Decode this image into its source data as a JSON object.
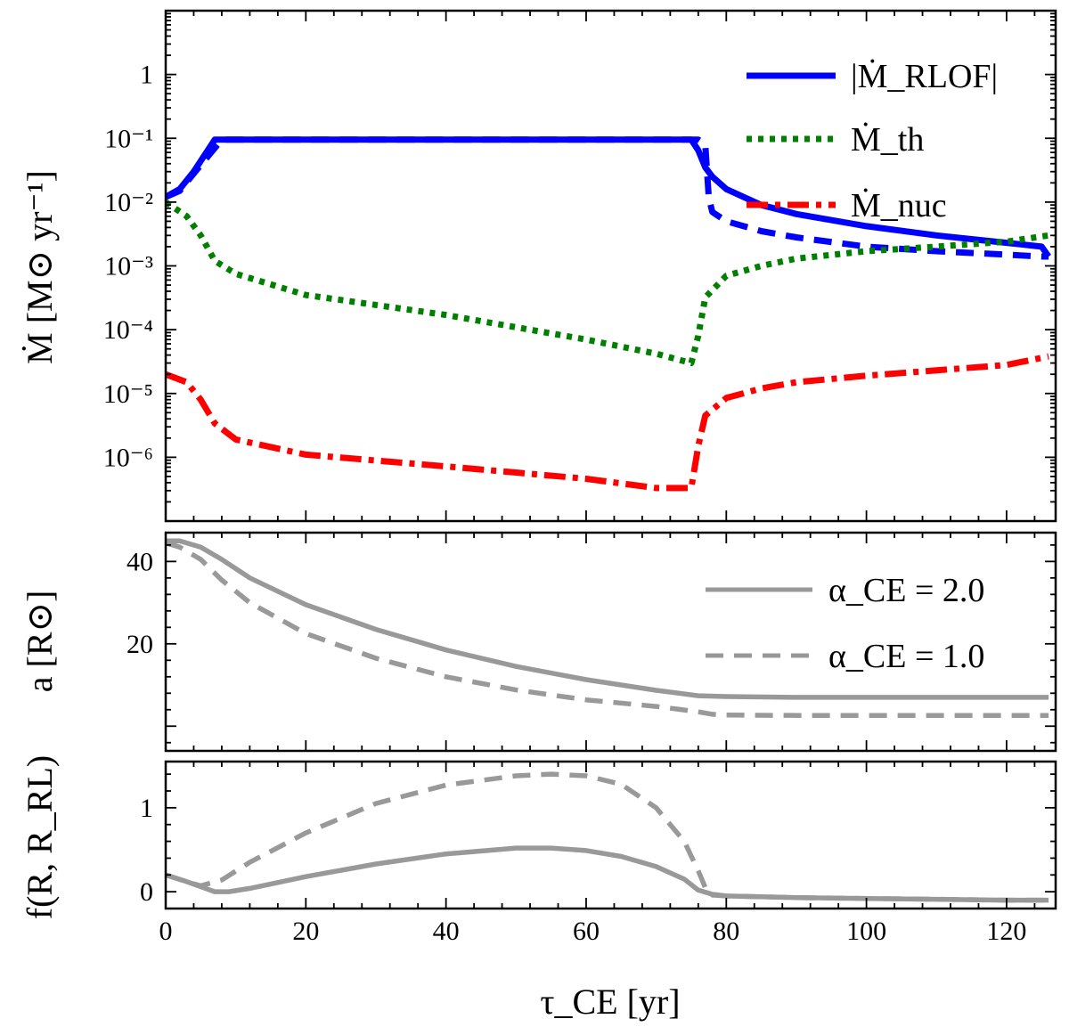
{
  "chart_data": [
    {
      "type": "line",
      "xlim": [
        0,
        127
      ],
      "ylim": [
        1e-07,
        10
      ],
      "yscale": "log",
      "xlabel": "τ_CE [yr]",
      "ylabel": "Ṁ [M⊙ yr⁻¹]",
      "ytick_labels": [
        "10⁻⁶",
        "10⁻⁵",
        "10⁻⁴",
        "10⁻³",
        "10⁻²",
        "10⁻¹",
        "1"
      ],
      "ytick_values": [
        1e-06,
        1e-05,
        0.0001,
        0.001,
        0.01,
        0.1,
        1
      ],
      "legend": [
        "|Ṁ_RLOF|",
        "Ṁ_th",
        "Ṁ_nuc"
      ],
      "legend_position": "top-right",
      "series": [
        {
          "name": "|Ṁ_RLOF|",
          "color": "#0000ff",
          "style": "solid",
          "x": [
            0,
            2,
            4,
            7,
            10,
            20,
            40,
            60,
            75,
            76,
            77,
            78,
            80,
            85,
            90,
            100,
            110,
            120,
            125,
            126
          ],
          "y": [
            0.012,
            0.016,
            0.03,
            0.095,
            0.095,
            0.095,
            0.095,
            0.095,
            0.095,
            0.065,
            0.035,
            0.025,
            0.016,
            0.009,
            0.0065,
            0.0042,
            0.003,
            0.0023,
            0.002,
            0.0014
          ]
        },
        {
          "name": "|Ṁ_RLOF| (α_CE=1.0)",
          "color": "#0000ff",
          "style": "dashed",
          "x": [
            0,
            2,
            4,
            8,
            10,
            20,
            40,
            60,
            76,
            77,
            77.5,
            78,
            80,
            85,
            90,
            100,
            110,
            120,
            125,
            126
          ],
          "y": [
            0.012,
            0.015,
            0.028,
            0.095,
            0.095,
            0.095,
            0.095,
            0.095,
            0.095,
            0.08,
            0.012,
            0.007,
            0.005,
            0.0035,
            0.0028,
            0.002,
            0.0017,
            0.0015,
            0.0014,
            0.0014
          ]
        },
        {
          "name": "Ṁ_th",
          "color": "#008000",
          "style": "dotted",
          "x": [
            0,
            3,
            5,
            7,
            10,
            20,
            40,
            60,
            70,
            75,
            76,
            77,
            80,
            85,
            90,
            100,
            110,
            120,
            126
          ],
          "y": [
            0.01,
            0.006,
            0.003,
            0.0012,
            0.00075,
            0.00035,
            0.00017,
            7e-05,
            4.2e-05,
            3e-05,
            8e-05,
            0.00032,
            0.0007,
            0.001,
            0.0013,
            0.0017,
            0.002,
            0.0024,
            0.003
          ]
        },
        {
          "name": "Ṁ_nuc",
          "color": "#ff0000",
          "style": "dashdot",
          "x": [
            0,
            3,
            5,
            7,
            10,
            20,
            40,
            60,
            70,
            75,
            76,
            77,
            80,
            85,
            90,
            100,
            110,
            120,
            126
          ],
          "y": [
            2e-05,
            1.5e-05,
            8e-06,
            3.4e-06,
            1.9e-06,
            1.1e-06,
            7.2e-07,
            4.6e-07,
            3.3e-07,
            3.3e-07,
            1.5e-06,
            4.5e-06,
            8.5e-06,
            1.2e-05,
            1.5e-05,
            1.9e-05,
            2.3e-05,
            2.8e-05,
            3.8e-05
          ]
        }
      ]
    },
    {
      "type": "line",
      "xlim": [
        0,
        127
      ],
      "ylim": [
        -6,
        47
      ],
      "ylabel": "a [R⊙]",
      "ytick_labels": [
        "20",
        "40"
      ],
      "ytick_values": [
        20,
        40
      ],
      "legend": [
        "α_CE = 2.0",
        "α_CE = 1.0"
      ],
      "legend_position": "top-right",
      "series": [
        {
          "name": "α_CE = 2.0",
          "color": "#999999",
          "style": "solid",
          "x": [
            0,
            2,
            5,
            8,
            12,
            20,
            30,
            40,
            50,
            60,
            70,
            76,
            80,
            90,
            100,
            110,
            120,
            126
          ],
          "y": [
            45,
            45,
            43.5,
            40.5,
            36,
            29.5,
            23.5,
            18.5,
            14.5,
            11.3,
            8.7,
            7.4,
            7.2,
            7.0,
            7.0,
            7.0,
            7.0,
            7.0
          ]
        },
        {
          "name": "α_CE = 1.0",
          "color": "#999999",
          "style": "dashed",
          "x": [
            0,
            2,
            5,
            8,
            12,
            20,
            30,
            40,
            50,
            60,
            70,
            76,
            78,
            80,
            90,
            100,
            110,
            120,
            126
          ],
          "y": [
            44.5,
            43.5,
            40.5,
            35.5,
            30,
            22.5,
            16.5,
            12,
            8.8,
            6.4,
            4.8,
            3.5,
            2.9,
            2.7,
            2.6,
            2.6,
            2.6,
            2.6,
            2.6
          ]
        }
      ]
    },
    {
      "type": "line",
      "xlim": [
        0,
        127
      ],
      "ylim": [
        -0.2,
        1.55
      ],
      "xlabel": "τ_CE [yr]",
      "ylabel": "f(R, R_RL)",
      "ytick_labels": [
        "0",
        "1"
      ],
      "ytick_values": [
        0,
        1
      ],
      "xtick_labels": [
        "0",
        "20",
        "40",
        "60",
        "80",
        "100",
        "120"
      ],
      "xtick_values": [
        0,
        20,
        40,
        60,
        80,
        100,
        120
      ],
      "series": [
        {
          "name": "α_CE = 2.0",
          "color": "#999999",
          "style": "solid",
          "x": [
            0,
            3,
            6,
            7,
            9,
            12,
            20,
            30,
            40,
            50,
            55,
            60,
            65,
            70,
            74,
            76,
            78,
            80,
            90,
            100,
            110,
            120,
            126
          ],
          "y": [
            0.2,
            0.12,
            0.03,
            0.0,
            0.0,
            0.04,
            0.18,
            0.33,
            0.45,
            0.52,
            0.52,
            0.49,
            0.42,
            0.3,
            0.15,
            0.02,
            -0.03,
            -0.05,
            -0.07,
            -0.08,
            -0.09,
            -0.1,
            -0.1
          ]
        },
        {
          "name": "α_CE = 1.0",
          "color": "#999999",
          "style": "dashed",
          "x": [
            0,
            3,
            5,
            8,
            12,
            20,
            30,
            40,
            50,
            55,
            60,
            65,
            70,
            74,
            76,
            77,
            78,
            80,
            90,
            100,
            110,
            120,
            126
          ],
          "y": [
            0.2,
            0.12,
            0.07,
            0.14,
            0.35,
            0.7,
            1.05,
            1.27,
            1.38,
            1.4,
            1.38,
            1.28,
            1.0,
            0.6,
            0.25,
            0.05,
            -0.04,
            -0.05,
            -0.07,
            -0.08,
            -0.09,
            -0.1,
            -0.1
          ]
        }
      ]
    }
  ]
}
